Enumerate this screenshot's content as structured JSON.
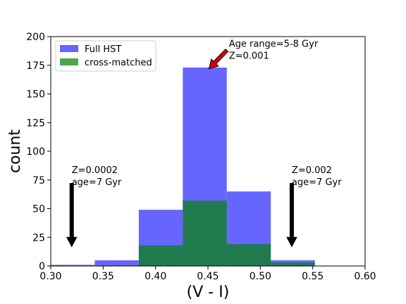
{
  "chart_data": {
    "type": "bar",
    "xlabel": "(V - I)",
    "ylabel": "count",
    "xlim": [
      0.3,
      0.6
    ],
    "ylim": [
      0,
      200
    ],
    "x_ticks": [
      "0.30",
      "0.35",
      "0.40",
      "0.45",
      "0.50",
      "0.55",
      "0.60"
    ],
    "y_ticks": [
      "0",
      "25",
      "50",
      "75",
      "100",
      "125",
      "150",
      "175",
      "200"
    ],
    "bin_edges": [
      0.3,
      0.342,
      0.384,
      0.426,
      0.468,
      0.51,
      0.552
    ],
    "grid": false,
    "legend_position": "top-left",
    "series": [
      {
        "name": "Full HST",
        "color": "#6666ff",
        "values": [
          1,
          5,
          49,
          173,
          65,
          5
        ]
      },
      {
        "name": "cross-matched",
        "color": "#217a4e",
        "legend_color": "#4aa84a",
        "values": [
          0,
          0,
          18,
          57,
          19,
          3
        ]
      }
    ],
    "annotations": [
      {
        "lines": [
          "Age range=5-8 Gyr",
          "Z=0.001"
        ],
        "arrow": "red",
        "arrow_tip": [
          0.451,
          172
        ],
        "arrow_tail": [
          0.468,
          188
        ],
        "text_at": [
          0.47,
          191
        ]
      },
      {
        "lines": [
          "Z=0.0002",
          "age=7 Gyr"
        ],
        "arrow": "black-down",
        "arrow_x": 0.32,
        "arrow_from": 72,
        "arrow_to": 17,
        "text_at": [
          0.32,
          81
        ]
      },
      {
        "lines": [
          "Z=0.002",
          "age=7 Gyr"
        ],
        "arrow": "black-down",
        "arrow_x": 0.53,
        "arrow_from": 72,
        "arrow_to": 17,
        "text_at": [
          0.53,
          81
        ]
      }
    ]
  }
}
